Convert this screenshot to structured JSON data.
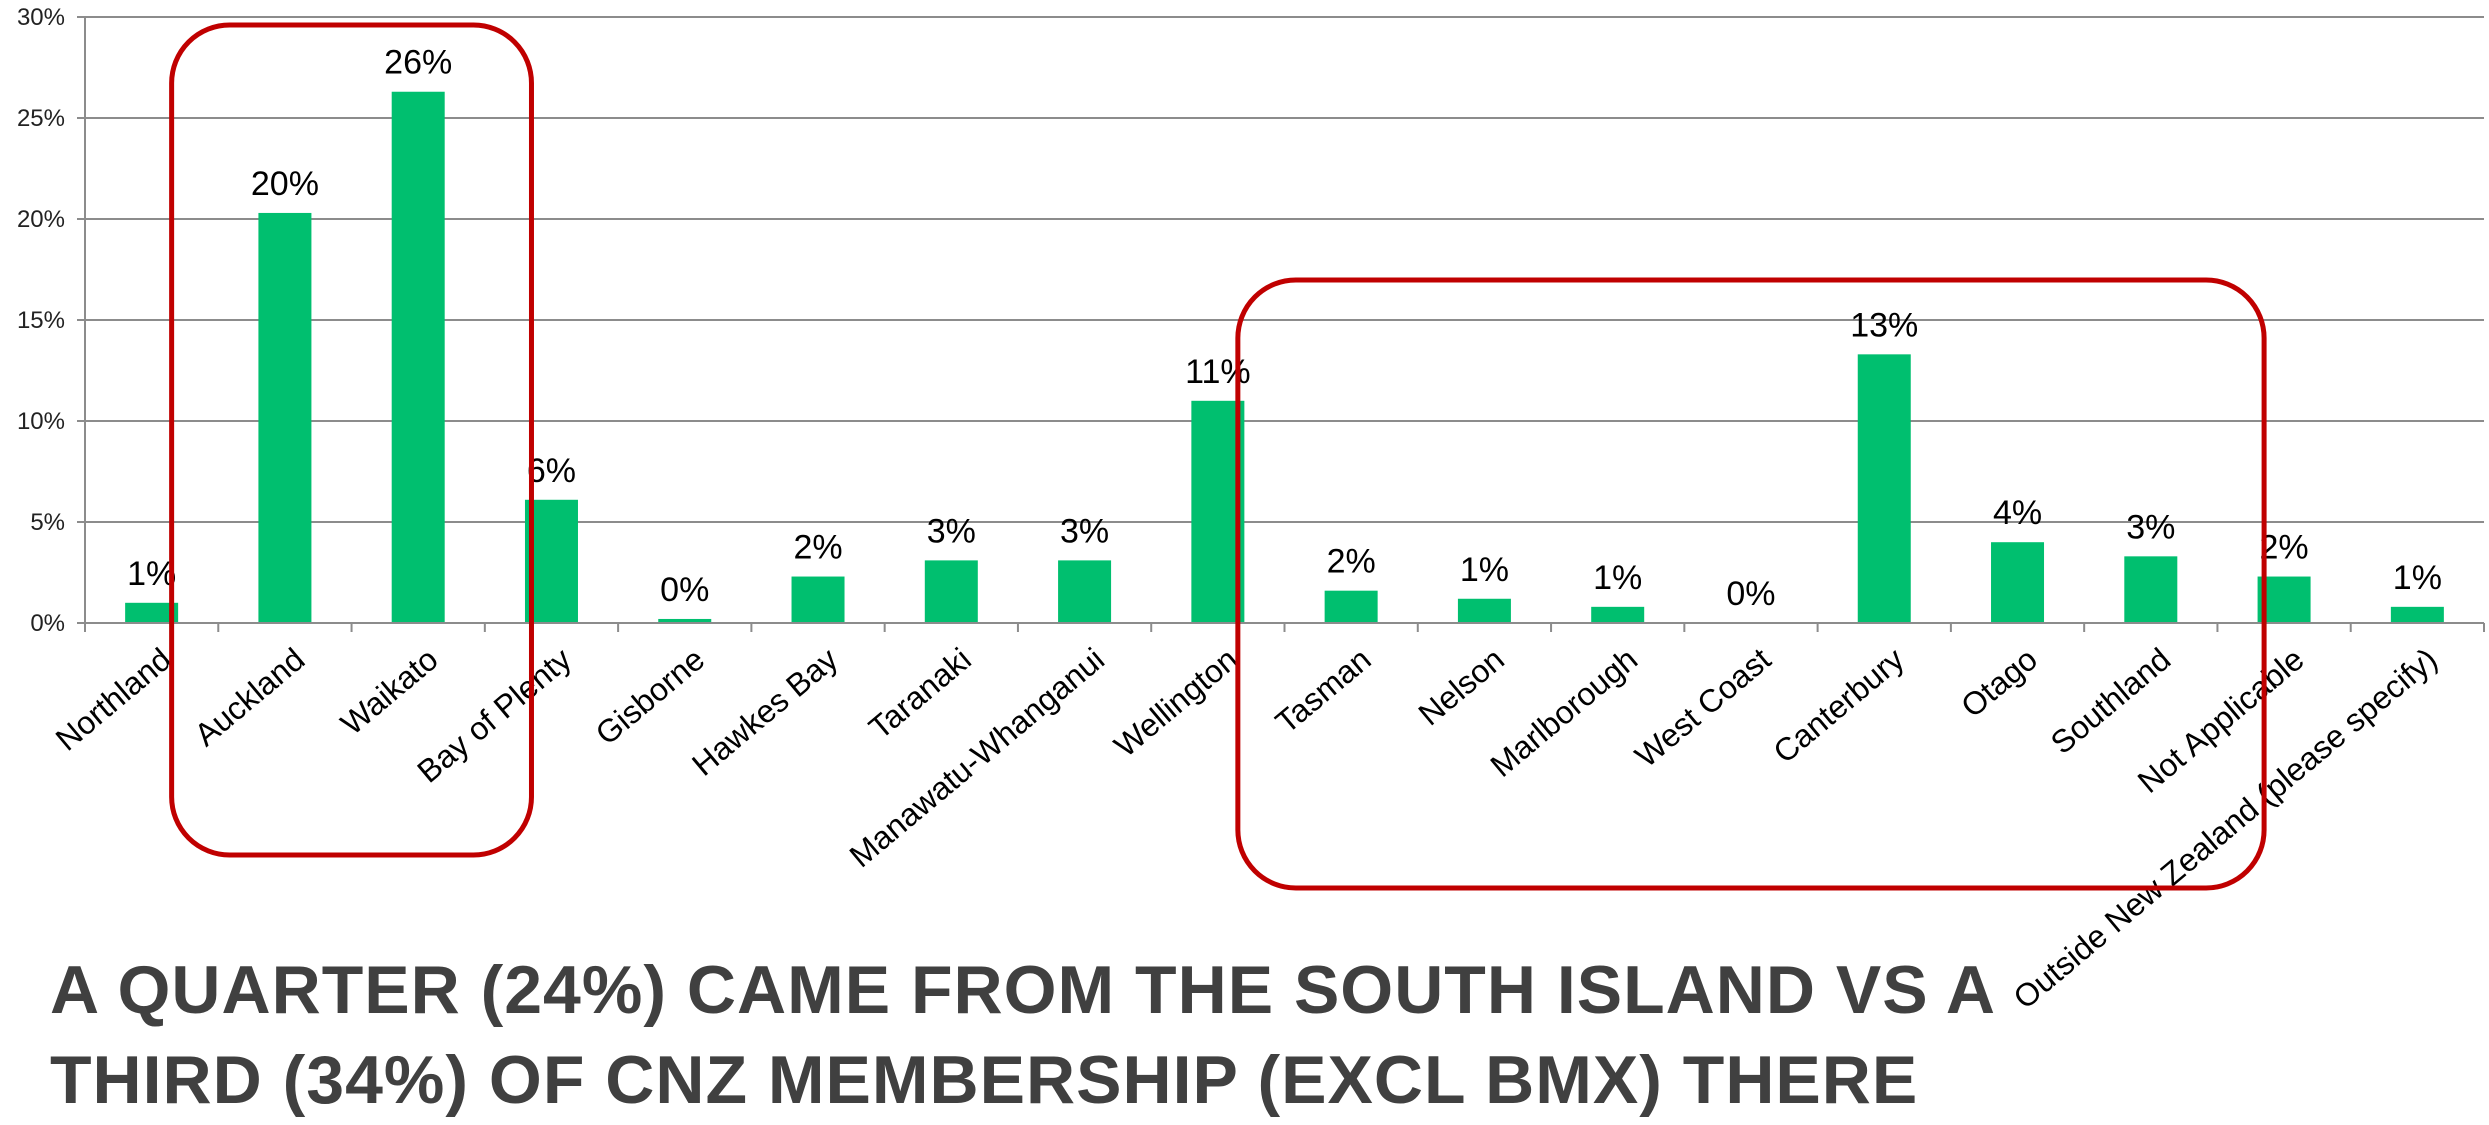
{
  "chart_data": {
    "type": "bar",
    "categories": [
      "Northland",
      "Auckland",
      "Waikato",
      "Bay of Plenty",
      "Gisborne",
      "Hawkes Bay",
      "Taranaki",
      "Manawatu-Whanganui",
      "Wellington",
      "Tasman",
      "Nelson",
      "Marlborough",
      "West Coast",
      "Canterbury",
      "Otago",
      "Southland",
      "Not Applicable",
      "Outside New Zealand (please specify)"
    ],
    "values": [
      1.0,
      20.3,
      26.3,
      6.1,
      0.2,
      2.3,
      3.1,
      3.1,
      11.0,
      1.6,
      1.2,
      0.8,
      0.0,
      13.3,
      4.0,
      3.3,
      2.3,
      0.8
    ],
    "data_labels": [
      "1%",
      "20%",
      "26%",
      "6%",
      "0%",
      "2%",
      "3%",
      "3%",
      "11%",
      "2%",
      "1%",
      "1%",
      "0%",
      "13%",
      "4%",
      "3%",
      "2%",
      "1%"
    ],
    "ylim": [
      0,
      30
    ],
    "yticks": [
      0,
      5,
      10,
      15,
      20,
      25,
      30
    ],
    "ytick_labels": [
      "0%",
      "5%",
      "10%",
      "15%",
      "20%",
      "25%",
      "30%"
    ],
    "grid": true,
    "bar_color": "#00bf6f",
    "highlight_color": "#c00000",
    "highlight_groups": [
      [
        "Auckland",
        "Waikato"
      ],
      [
        "Tasman",
        "Nelson",
        "Marlborough",
        "West Coast",
        "Canterbury",
        "Otago",
        "Southland"
      ]
    ]
  },
  "headline": "A QUARTER (24%) CAME FROM THE SOUTH ISLAND VS A THIRD (34%) OF CNZ MEMBERSHIP (EXCL BMX) THERE"
}
